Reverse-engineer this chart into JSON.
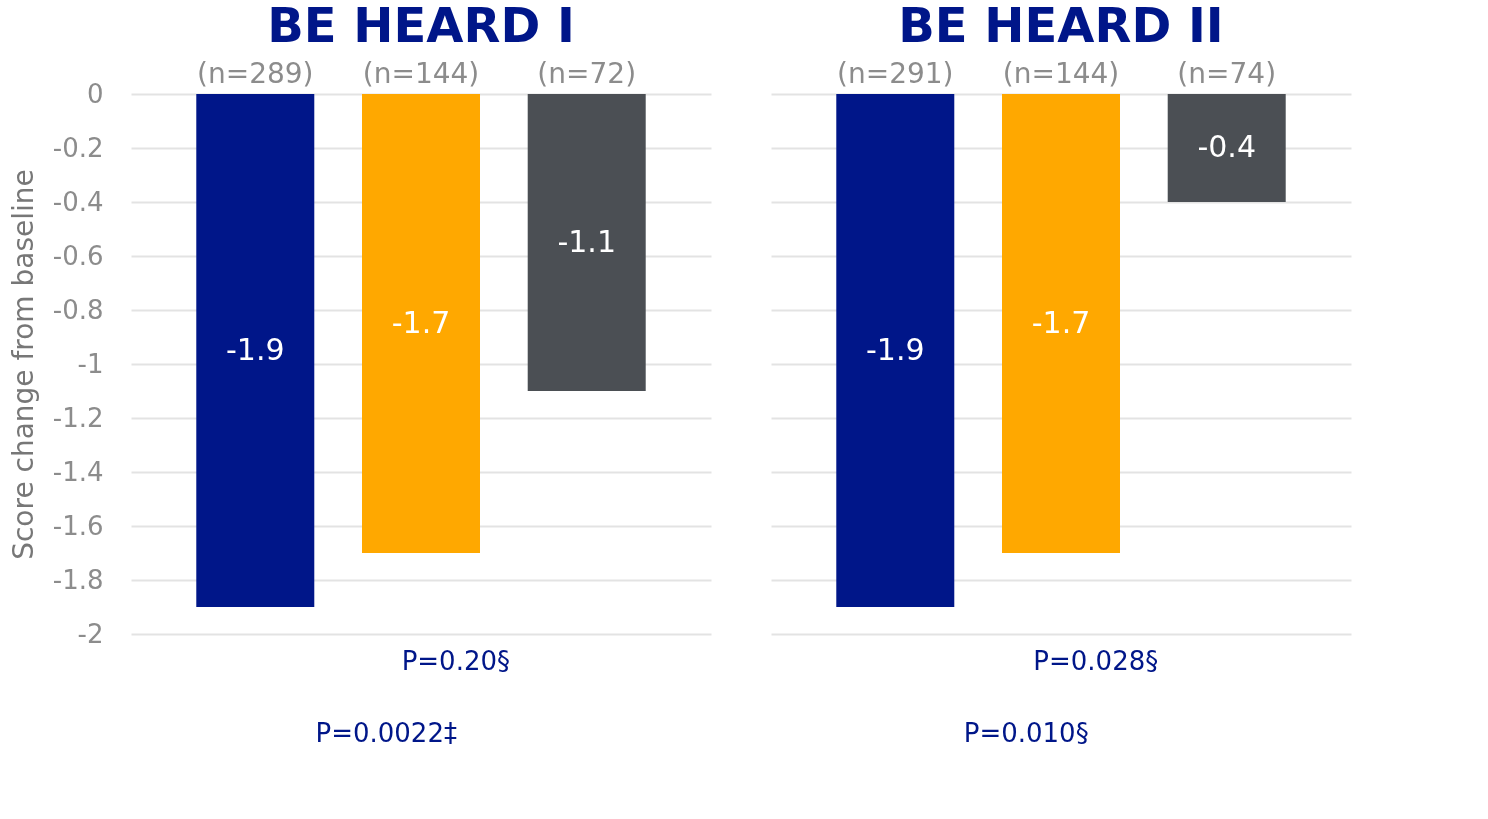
{
  "chart_data": [
    {
      "type": "bar",
      "title": "BE HEARD I",
      "ylabel": "Score change from baseline",
      "categories": [
        "(n=289)",
        "(n=144)",
        "(n=72)"
      ],
      "values": [
        -1.9,
        -1.7,
        -1.1
      ],
      "colors": [
        "#001689",
        "#ffa800",
        "#4b4f54"
      ],
      "ylim": [
        -2,
        0
      ],
      "yticks": [
        0,
        -0.2,
        -0.4,
        -0.6,
        -0.8,
        -1,
        -1.2,
        -1.4,
        -1.6,
        -1.8,
        -2
      ],
      "grid": "y",
      "data_labels": true,
      "annotations": [
        "P=0.20§",
        "P=0.0022‡"
      ]
    },
    {
      "type": "bar",
      "title": "BE HEARD II",
      "categories": [
        "(n=291)",
        "(n=144)",
        "(n=74)"
      ],
      "values": [
        -1.9,
        -1.7,
        -0.4
      ],
      "colors": [
        "#001689",
        "#ffa800",
        "#4b4f54"
      ],
      "ylim": [
        -2,
        0
      ],
      "yticks": [
        0,
        -0.2,
        -0.4,
        -0.6,
        -0.8,
        -1,
        -1.2,
        -1.4,
        -1.6,
        -1.8,
        -2
      ],
      "grid": "y",
      "data_labels": true,
      "tick_labels": "x",
      "annotations": [
        "P=0.028§",
        "P=0.010§"
      ]
    }
  ]
}
